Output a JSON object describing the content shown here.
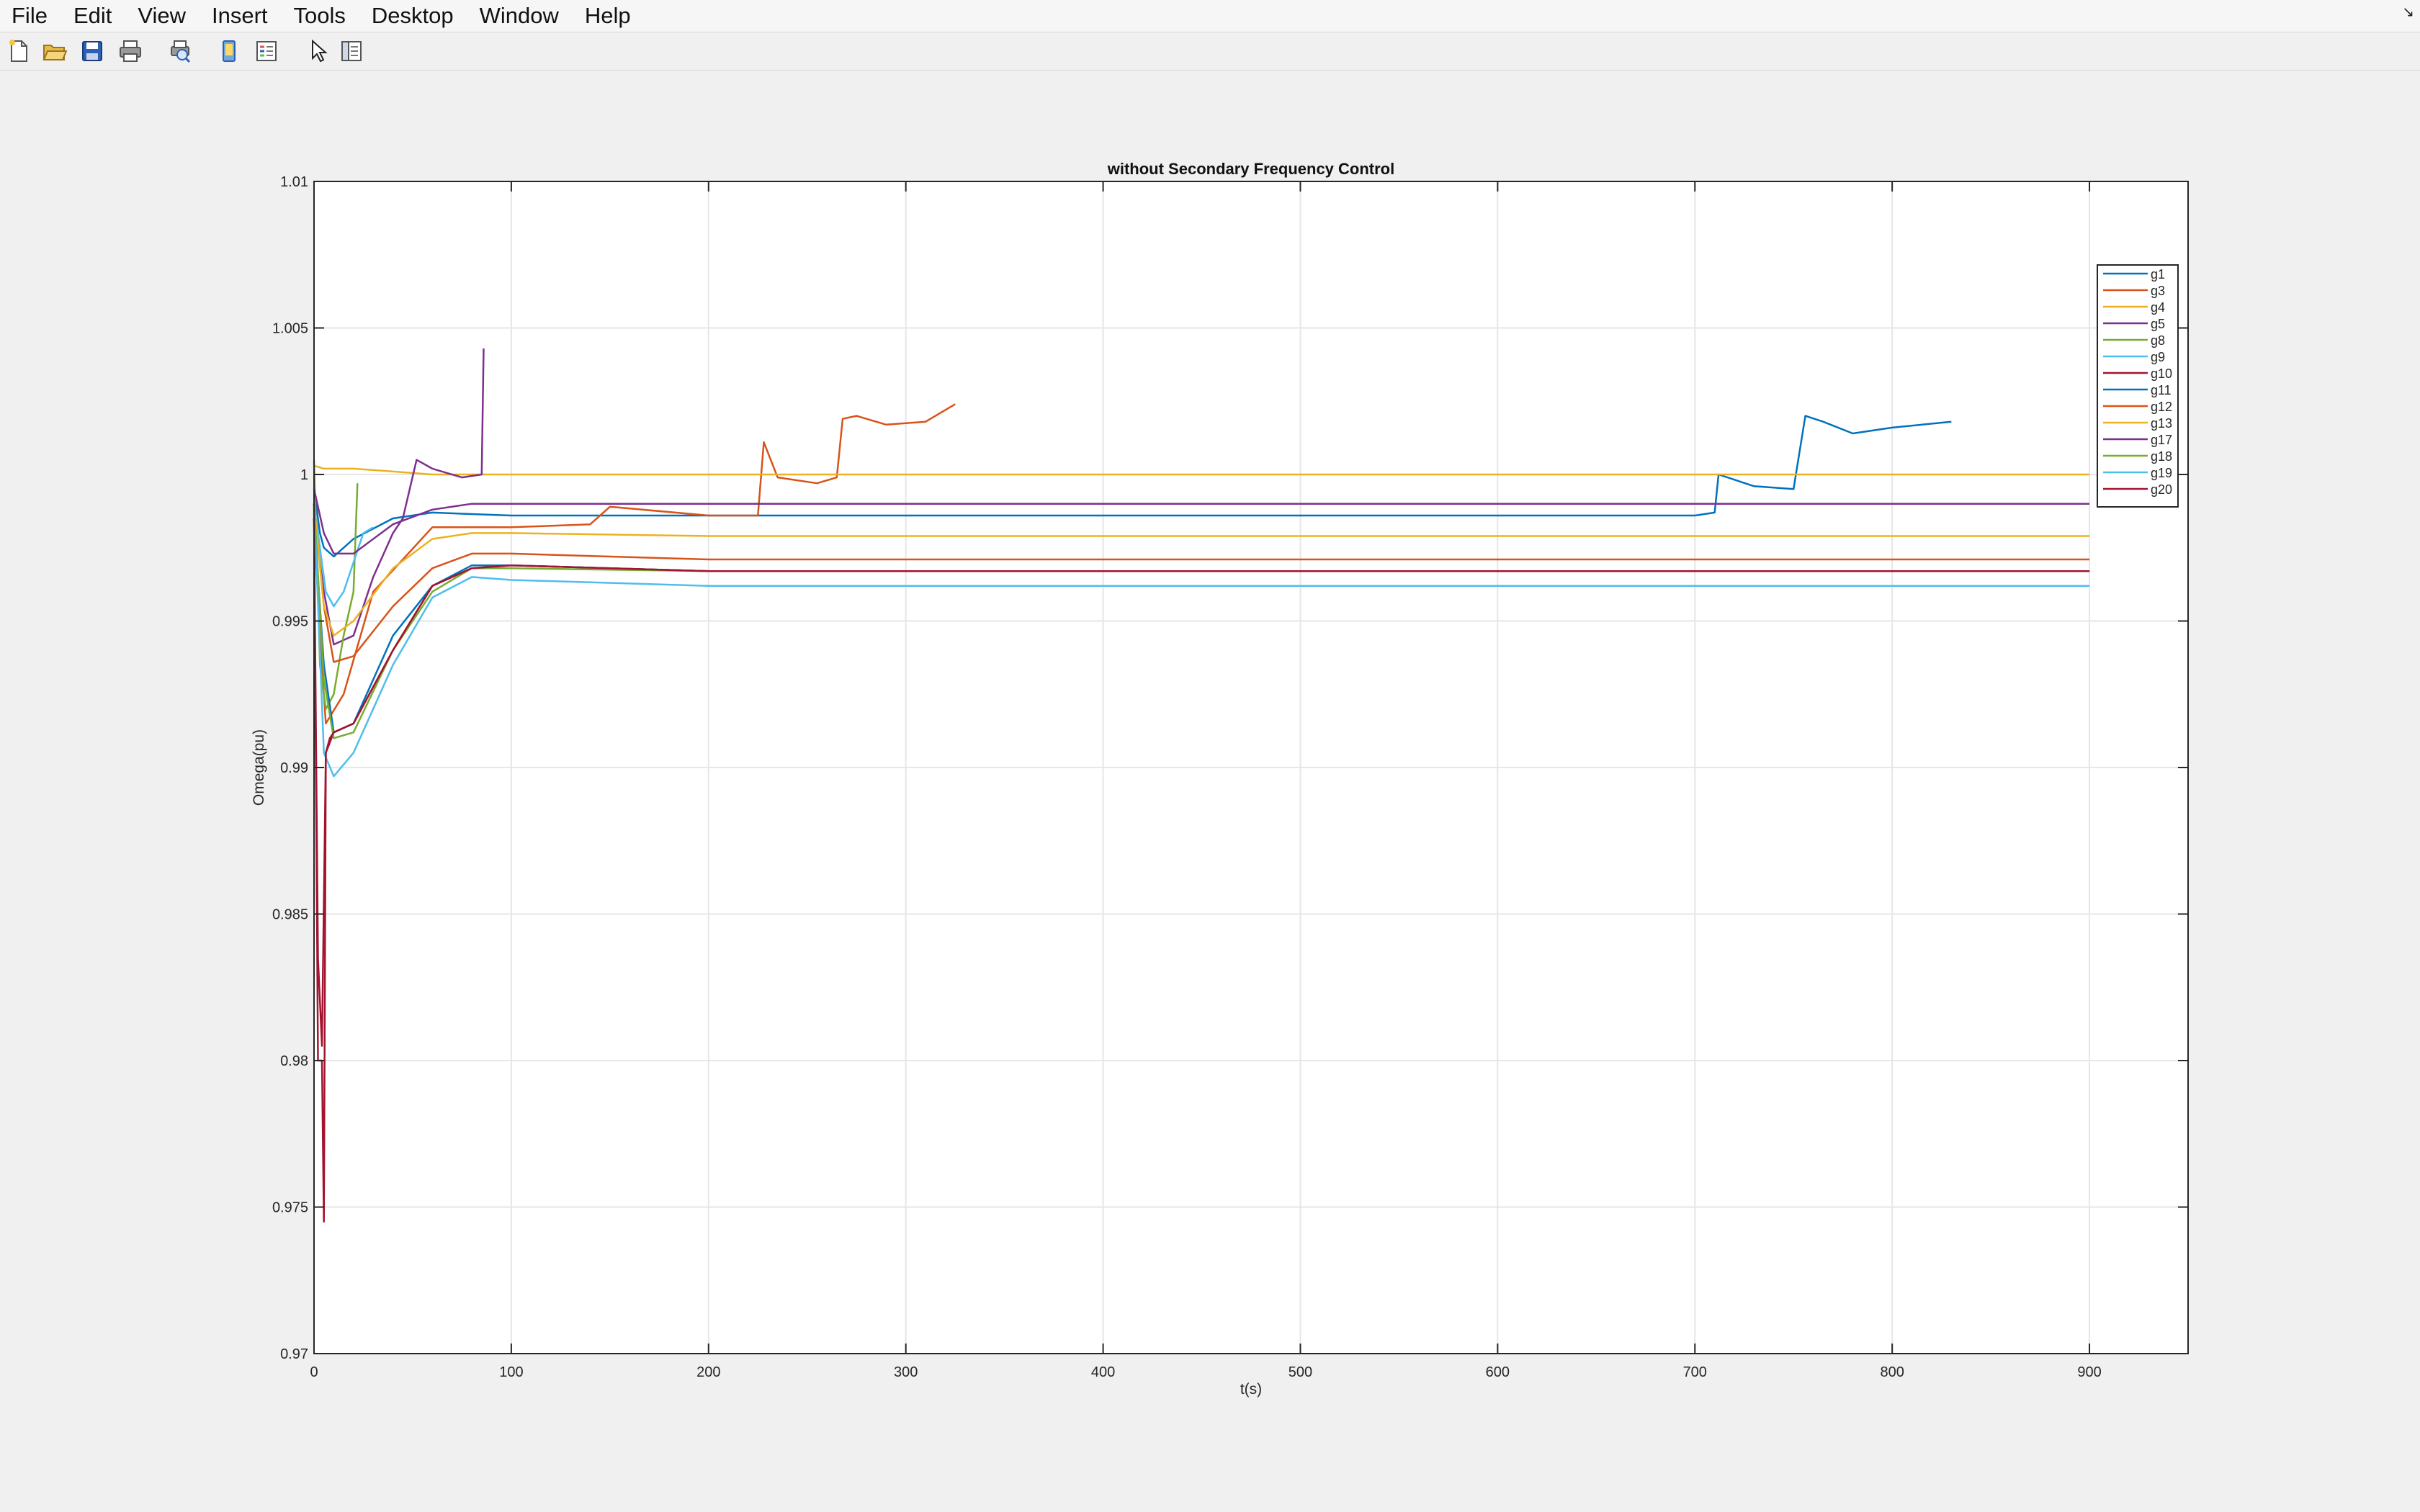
{
  "menu": [
    "File",
    "Edit",
    "View",
    "Insert",
    "Tools",
    "Desktop",
    "Window",
    "Help"
  ],
  "corner_glyph": "↘",
  "toolbar": [
    {
      "name": "new-figure-icon"
    },
    {
      "name": "open-file-icon"
    },
    {
      "name": "save-icon"
    },
    {
      "name": "print-icon"
    },
    {
      "name": "print-preview-icon"
    },
    {
      "name": "link-plot-icon"
    },
    {
      "name": "insert-legend-icon"
    },
    {
      "name": "edit-plot-arrow-icon"
    },
    {
      "name": "property-inspector-icon"
    }
  ],
  "chart_data": {
    "type": "line",
    "title": "without Secondary Frequency Control",
    "xlabel": "t(s)",
    "ylabel": "Omega(pu)",
    "xlim": [
      0,
      950
    ],
    "ylim": [
      0.97,
      1.01
    ],
    "xticks": [
      0,
      100,
      200,
      300,
      400,
      500,
      600,
      700,
      800,
      900
    ],
    "yticks": [
      0.97,
      0.975,
      0.98,
      0.985,
      0.99,
      0.995,
      1,
      1.005,
      1.01
    ],
    "ytick_labels": [
      "0.97",
      "0.975",
      "0.98",
      "0.985",
      "0.99",
      "0.995",
      "1",
      "1.005",
      "1.01"
    ],
    "grid": true,
    "legend_position": "top-right",
    "series": [
      {
        "name": "g1",
        "color": "#0072bd",
        "x": [
          0,
          3,
          5,
          10,
          20,
          40,
          60,
          100,
          200,
          300,
          400,
          500,
          600,
          700,
          710,
          712,
          730,
          750,
          756,
          765,
          780,
          800,
          830
        ],
        "y": [
          0.9995,
          0.998,
          0.9975,
          0.9972,
          0.9978,
          0.9985,
          0.9987,
          0.9986,
          0.9986,
          0.9986,
          0.9986,
          0.9986,
          0.9986,
          0.9986,
          0.9987,
          1.0,
          0.9996,
          0.9995,
          1.002,
          1.0018,
          1.0014,
          1.0016,
          1.0018
        ]
      },
      {
        "name": "g3",
        "color": "#d95319",
        "x": [
          0,
          3,
          6,
          15,
          30,
          60,
          100,
          140,
          150,
          200,
          225,
          228,
          235,
          255,
          265,
          268,
          275,
          290,
          310,
          325
        ],
        "y": [
          0.9985,
          0.9945,
          0.9915,
          0.9925,
          0.996,
          0.9982,
          0.9982,
          0.9983,
          0.9989,
          0.9986,
          0.9986,
          1.0011,
          0.9999,
          0.9997,
          0.9999,
          1.0019,
          1.002,
          1.0017,
          1.0018,
          1.0024
        ]
      },
      {
        "name": "g4",
        "color": "#edb120",
        "x": [
          0,
          5,
          20,
          40,
          60,
          100,
          200,
          900
        ],
        "y": [
          1.0003,
          1.0002,
          1.0002,
          1.0001,
          1.0,
          1.0,
          1.0,
          1.0
        ]
      },
      {
        "name": "g5",
        "color": "#7e2f8e",
        "x": [
          0,
          5,
          10,
          20,
          30,
          40,
          45,
          52,
          60,
          75,
          85,
          86
        ],
        "y": [
          0.9985,
          0.996,
          0.9942,
          0.9945,
          0.9965,
          0.998,
          0.9985,
          1.0005,
          1.0002,
          0.9999,
          1.0,
          1.0043
        ]
      },
      {
        "name": "g8",
        "color": "#77ac30",
        "x": [
          0,
          3,
          6,
          10,
          15,
          20,
          22
        ],
        "y": [
          1.0005,
          0.9935,
          0.992,
          0.9925,
          0.9945,
          0.996,
          0.9997
        ]
      },
      {
        "name": "g9",
        "color": "#4dbeee",
        "x": [
          0,
          3,
          6,
          10,
          15,
          20,
          25,
          30
        ],
        "y": [
          0.999,
          0.9975,
          0.996,
          0.9955,
          0.996,
          0.997,
          0.998,
          0.9982
        ]
      },
      {
        "name": "g10",
        "color": "#a2142f",
        "x": [
          0,
          2,
          4,
          6,
          10,
          20,
          40,
          60,
          80,
          100,
          200,
          400,
          900
        ],
        "y": [
          0.9985,
          0.9835,
          0.9805,
          0.9905,
          0.9912,
          0.9915,
          0.994,
          0.9962,
          0.9968,
          0.9969,
          0.9967,
          0.9967,
          0.9967
        ]
      },
      {
        "name": "g11",
        "color": "#0072bd",
        "x": [
          0,
          5,
          10,
          20,
          40,
          60,
          80,
          100,
          200,
          400,
          900
        ],
        "y": [
          0.9985,
          0.9935,
          0.9912,
          0.9915,
          0.9945,
          0.9962,
          0.9969,
          0.9969,
          0.9967,
          0.9967,
          0.9967
        ]
      },
      {
        "name": "g12",
        "color": "#d95319",
        "x": [
          0,
          5,
          10,
          20,
          40,
          60,
          80,
          100,
          200,
          900
        ],
        "y": [
          0.999,
          0.9955,
          0.9936,
          0.9938,
          0.9955,
          0.9968,
          0.9973,
          0.9973,
          0.9971,
          0.9971
        ]
      },
      {
        "name": "g13",
        "color": "#edb120",
        "x": [
          0,
          5,
          10,
          20,
          40,
          60,
          80,
          100,
          200,
          900
        ],
        "y": [
          0.999,
          0.9955,
          0.9945,
          0.995,
          0.9968,
          0.9978,
          0.998,
          0.998,
          0.9979,
          0.9979
        ]
      },
      {
        "name": "g17",
        "color": "#7e2f8e",
        "x": [
          0,
          5,
          10,
          20,
          40,
          60,
          80,
          100,
          200,
          900
        ],
        "y": [
          0.9995,
          0.998,
          0.9973,
          0.9973,
          0.9983,
          0.9988,
          0.999,
          0.999,
          0.999,
          0.999
        ]
      },
      {
        "name": "g18",
        "color": "#77ac30",
        "x": [
          0,
          5,
          10,
          20,
          40,
          60,
          80,
          100,
          200,
          900
        ],
        "y": [
          0.999,
          0.993,
          0.991,
          0.9912,
          0.994,
          0.996,
          0.9968,
          0.9968,
          0.9967,
          0.9967
        ]
      },
      {
        "name": "g19",
        "color": "#4dbeee",
        "x": [
          0,
          5,
          10,
          20,
          40,
          60,
          80,
          100,
          200,
          900
        ],
        "y": [
          0.999,
          0.9905,
          0.9897,
          0.9905,
          0.9935,
          0.9958,
          0.9965,
          0.9964,
          0.9962,
          0.9962
        ]
      },
      {
        "name": "g20",
        "color": "#a2142f",
        "x": [
          0,
          2,
          4,
          5,
          6,
          8,
          10,
          20,
          40,
          60,
          80,
          100,
          200,
          900
        ],
        "y": [
          0.999,
          0.98,
          0.98,
          0.9745,
          0.9905,
          0.991,
          0.9912,
          0.9915,
          0.994,
          0.9962,
          0.9968,
          0.9969,
          0.9967,
          0.9967
        ]
      }
    ]
  }
}
